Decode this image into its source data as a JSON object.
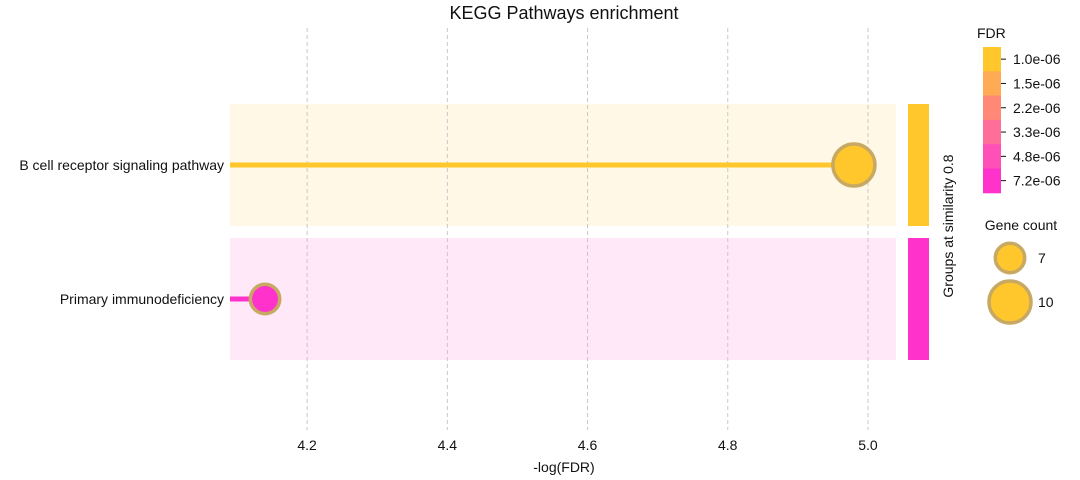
{
  "chart_data": {
    "type": "lollipop",
    "title": "KEGG Pathways enrichment",
    "xlabel": "-log(FDR)",
    "xlim": [
      4.09,
      5.04
    ],
    "xticks": [
      "4.2",
      "4.4",
      "4.6",
      "4.8",
      "5.0"
    ],
    "xtick_values": [
      4.2,
      4.4,
      4.6,
      4.8,
      5.0
    ],
    "grid": "vertical dashed",
    "group_axis_label": "Groups at similarity 0.8",
    "pathways": [
      {
        "name": "B cell receptor signaling pathway",
        "neg_log_fdr": 4.98,
        "gene_count": 10,
        "color": "#FFC72C",
        "band_color": "#FFF8E6",
        "group_color": "#FFC72C"
      },
      {
        "name": "Primary immunodeficiency",
        "neg_log_fdr": 4.14,
        "gene_count": 7,
        "color": "#FF33CC",
        "band_color": "#FFE8F8",
        "group_color": "#FF33CC"
      }
    ],
    "fdr_legend": {
      "title": "FDR",
      "items": [
        {
          "label": "1.0e-06",
          "color": "#FFC72C"
        },
        {
          "label": "1.5e-06",
          "color": "#FFAA55"
        },
        {
          "label": "2.2e-06",
          "color": "#FF8877"
        },
        {
          "label": "3.3e-06",
          "color": "#FF6E99"
        },
        {
          "label": "4.8e-06",
          "color": "#FF50B8"
        },
        {
          "label": "7.2e-06",
          "color": "#FF33CC"
        }
      ]
    },
    "size_legend": {
      "title": "Gene count",
      "items": [
        {
          "label": "7",
          "value": 7
        },
        {
          "label": "10",
          "value": 10
        }
      ]
    },
    "marker_edge_color": "#C8A964"
  }
}
